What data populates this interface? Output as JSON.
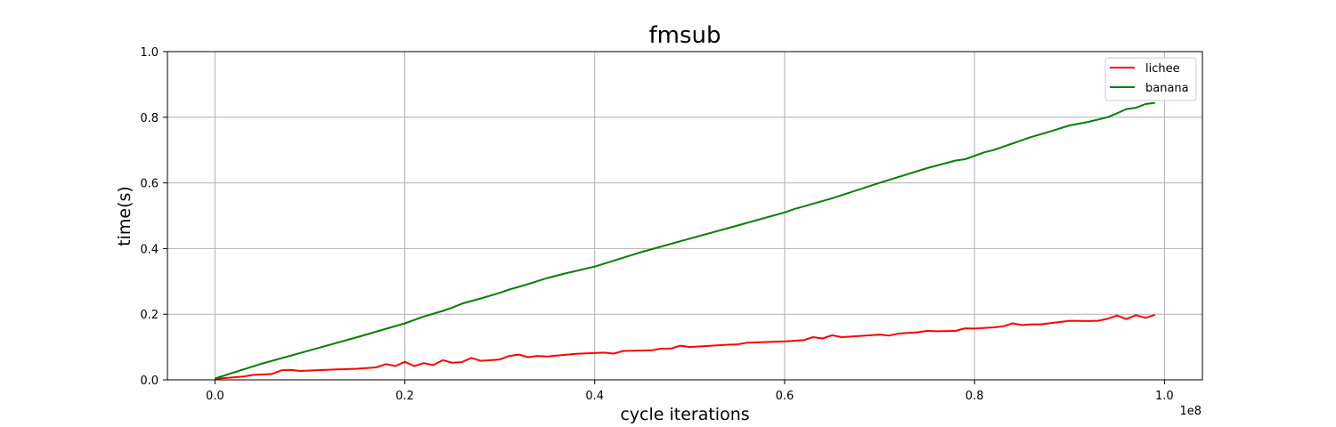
{
  "chart_data": {
    "type": "line",
    "title": "fmsub",
    "xlabel": "cycle iterations",
    "ylabel": "time(s)",
    "x_offset_label": "1e8",
    "xlim": [
      -0.05,
      1.04
    ],
    "ylim": [
      0.0,
      1.0
    ],
    "xticks": [
      0.0,
      0.2,
      0.4,
      0.6,
      0.8,
      1.0
    ],
    "xtick_labels": [
      "0.0",
      "0.2",
      "0.4",
      "0.6",
      "0.8",
      "1.0"
    ],
    "yticks": [
      0.0,
      0.2,
      0.4,
      0.6,
      0.8,
      1.0
    ],
    "ytick_labels": [
      "0.0",
      "0.2",
      "0.4",
      "0.6",
      "0.8",
      "1.0"
    ],
    "grid": true,
    "legend_position": "top-right",
    "series": [
      {
        "name": "lichee",
        "color": "#ff0000",
        "x": [
          0.0,
          0.03,
          0.04,
          0.06,
          0.07,
          0.08,
          0.09,
          0.12,
          0.15,
          0.17,
          0.18,
          0.19,
          0.2,
          0.21,
          0.22,
          0.23,
          0.24,
          0.25,
          0.26,
          0.27,
          0.28,
          0.3,
          0.31,
          0.32,
          0.33,
          0.34,
          0.35,
          0.38,
          0.41,
          0.42,
          0.43,
          0.46,
          0.47,
          0.48,
          0.49,
          0.5,
          0.54,
          0.55,
          0.56,
          0.6,
          0.62,
          0.63,
          0.64,
          0.65,
          0.66,
          0.68,
          0.7,
          0.71,
          0.72,
          0.74,
          0.75,
          0.76,
          0.78,
          0.79,
          0.8,
          0.82,
          0.83,
          0.84,
          0.85,
          0.86,
          0.87,
          0.9,
          0.92,
          0.93,
          0.94,
          0.95,
          0.96,
          0.97,
          0.98,
          0.99
        ],
        "y": [
          0.003,
          0.01,
          0.015,
          0.018,
          0.029,
          0.03,
          0.027,
          0.031,
          0.034,
          0.038,
          0.048,
          0.042,
          0.055,
          0.042,
          0.051,
          0.045,
          0.06,
          0.052,
          0.054,
          0.067,
          0.058,
          0.062,
          0.073,
          0.077,
          0.069,
          0.073,
          0.071,
          0.079,
          0.083,
          0.08,
          0.088,
          0.09,
          0.095,
          0.095,
          0.104,
          0.1,
          0.107,
          0.108,
          0.113,
          0.117,
          0.121,
          0.13,
          0.126,
          0.136,
          0.13,
          0.134,
          0.138,
          0.135,
          0.141,
          0.145,
          0.149,
          0.148,
          0.149,
          0.157,
          0.156,
          0.16,
          0.163,
          0.172,
          0.167,
          0.169,
          0.169,
          0.18,
          0.179,
          0.18,
          0.186,
          0.196,
          0.185,
          0.197,
          0.189,
          0.198
        ]
      },
      {
        "name": "banana",
        "color": "#008000",
        "x": [
          0.0,
          0.05,
          0.1,
          0.15,
          0.2,
          0.22,
          0.24,
          0.25,
          0.26,
          0.28,
          0.3,
          0.31,
          0.33,
          0.35,
          0.37,
          0.4,
          0.45,
          0.5,
          0.55,
          0.6,
          0.61,
          0.65,
          0.7,
          0.75,
          0.78,
          0.79,
          0.81,
          0.82,
          0.85,
          0.86,
          0.88,
          0.9,
          0.92,
          0.94,
          0.95,
          0.96,
          0.97,
          0.98,
          0.99
        ],
        "y": [
          0.004,
          0.05,
          0.09,
          0.13,
          0.172,
          0.193,
          0.21,
          0.22,
          0.232,
          0.248,
          0.265,
          0.275,
          0.292,
          0.31,
          0.325,
          0.345,
          0.39,
          0.43,
          0.47,
          0.51,
          0.52,
          0.553,
          0.6,
          0.645,
          0.668,
          0.672,
          0.693,
          0.7,
          0.73,
          0.74,
          0.757,
          0.775,
          0.786,
          0.8,
          0.812,
          0.825,
          0.829,
          0.84,
          0.844
        ]
      }
    ]
  }
}
